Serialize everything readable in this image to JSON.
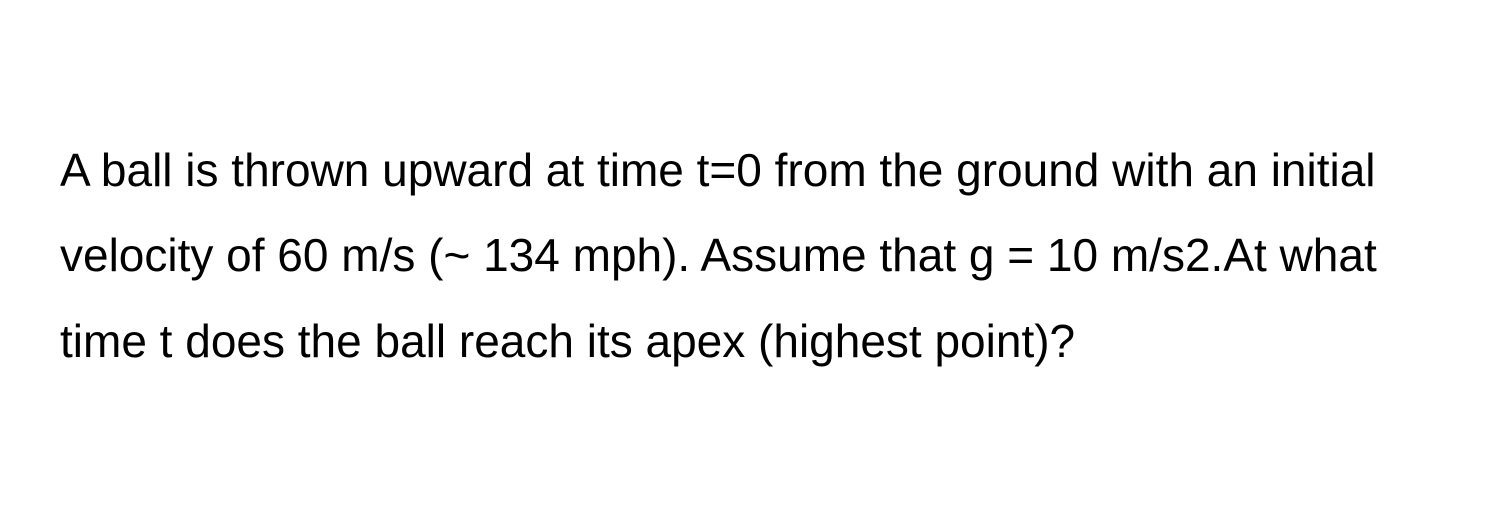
{
  "problem": {
    "text": "A ball is thrown upward at time t=0 from the ground with an initial velocity of 60 m/s (~ 134 mph). Assume that g = 10 m/s2.At what time t does the ball reach its apex (highest point)?",
    "font_size": 46,
    "line_height": 1.85,
    "text_color": "#000000",
    "background_color": "#ffffff",
    "font_weight": 400
  }
}
